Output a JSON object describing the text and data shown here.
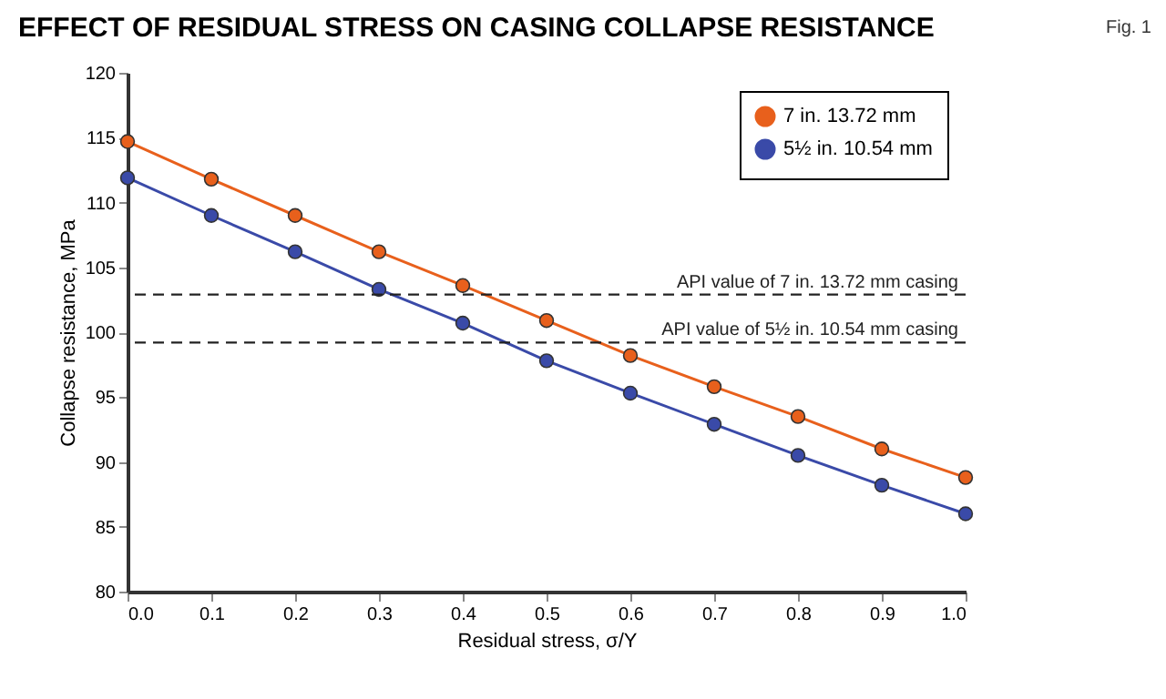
{
  "chart_data": {
    "type": "line",
    "title": "EFFECT OF RESIDUAL STRESS ON CASING COLLAPSE RESISTANCE",
    "xlabel": "Residual stress, σ/Y",
    "ylabel": "Collapse resistance, MPa",
    "x": [
      0.0,
      0.1,
      0.2,
      0.3,
      0.4,
      0.5,
      0.6,
      0.7,
      0.8,
      0.9,
      1.0
    ],
    "series": [
      {
        "name": "7 in. 13.72 mm",
        "color": "#e8601c",
        "values": [
          114.7,
          111.8,
          109.0,
          106.2,
          103.6,
          100.9,
          98.2,
          95.8,
          93.5,
          91.0,
          88.8
        ]
      },
      {
        "name": "5½ in. 10.54 mm",
        "color": "#3a4aa8",
        "values": [
          111.9,
          109.0,
          106.2,
          103.3,
          100.7,
          97.8,
          95.3,
          92.9,
          90.5,
          88.2,
          86.0
        ]
      }
    ],
    "xlim": [
      0.0,
      1.0
    ],
    "xticks": [
      {
        "value": 0,
        "label": "0.0"
      },
      0.1,
      0.2,
      0.3,
      0.4,
      0.5,
      0.6,
      0.7,
      0.8,
      0.9,
      {
        "value": 1,
        "label": "1.0"
      }
    ],
    "ylim": [
      80,
      120
    ],
    "yticks": [
      80,
      85,
      90,
      95,
      100,
      105,
      110,
      115,
      120
    ],
    "ref_lines": [
      {
        "axis": "y",
        "value": 102.9,
        "label": "API value of 7 in. 13.72 mm casing",
        "color": "#222222",
        "line_style": "dashed"
      },
      {
        "axis": "y",
        "value": 99.2,
        "label": "API value of 5½ in. 10.54 mm casing",
        "color": "#222222",
        "line_style": "dashed"
      }
    ],
    "annotations": [
      "Fig. 1"
    ],
    "grid": false,
    "legend": "top right",
    "marker": "circle",
    "line_style": "solid"
  }
}
